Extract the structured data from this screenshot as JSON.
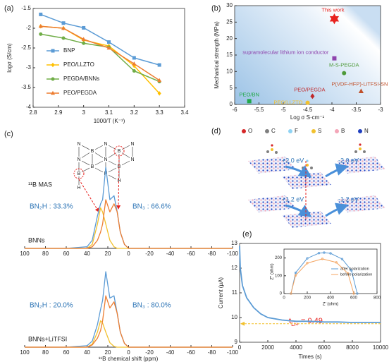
{
  "chart_data": [
    {
      "type": "line",
      "label": "(a)",
      "xlabel": "1000/T (K⁻¹)",
      "ylabel": "logσ (S/cm)",
      "xlim": [
        2.8,
        3.4
      ],
      "xticks": [
        2.8,
        2.9,
        3,
        3.1,
        3.2,
        3.3,
        3.4
      ],
      "ylim": [
        -4,
        -1.5
      ],
      "yticks": [
        -4,
        -3.5,
        -3,
        -2.5,
        -2,
        -1.5
      ],
      "x": [
        2.83,
        2.92,
        3.0,
        3.1,
        3.2,
        3.3
      ],
      "series": [
        {
          "name": "BNP",
          "color": "#5b9bd5",
          "marker": "square",
          "values": [
            -1.65,
            -1.87,
            -1.99,
            -2.35,
            -2.75,
            -2.93
          ]
        },
        {
          "name": "PEO/LLZTO",
          "color": "#ffc000",
          "marker": "diamond",
          "values": [
            -1.95,
            -2.0,
            -2.3,
            -2.45,
            -2.95,
            -3.65
          ]
        },
        {
          "name": "PEGDA/BNNs",
          "color": "#70ad47",
          "marker": "circle",
          "values": [
            -2.15,
            -2.25,
            -2.38,
            -2.48,
            -3.08,
            -3.35
          ]
        },
        {
          "name": "PEO/PEGDA",
          "color": "#ed7d31",
          "marker": "triangle",
          "values": [
            -1.95,
            -2.0,
            -2.28,
            -2.5,
            -2.9,
            -3.32
          ]
        }
      ]
    },
    {
      "type": "scatter",
      "label": "(b)",
      "xlabel": "Log σ S·cm⁻¹",
      "ylabel": "Mechanical strength (MPa)",
      "xlim": [
        -6,
        -3
      ],
      "xticks": [
        -6,
        -5.5,
        -5,
        -4.5,
        -4,
        -3.5,
        -3
      ],
      "ylim": [
        0,
        30
      ],
      "yticks": [
        0,
        5,
        10,
        15,
        20,
        25,
        30
      ],
      "series": [
        {
          "name": "This work",
          "color": "#e8231f",
          "marker": "star",
          "x": [
            -3.95
          ],
          "values": [
            26
          ]
        },
        {
          "name": "supramolecular lithium ion conductor",
          "color": "#8e44ad",
          "marker": "square",
          "x": [
            -3.95
          ],
          "values": [
            14
          ]
        },
        {
          "name": "M-S-PEGDA",
          "color": "#4e9a3a",
          "marker": "circle",
          "x": [
            -3.75
          ],
          "values": [
            9.5
          ]
        },
        {
          "name": "P(VDF-HFP)-LiTFSI-SN",
          "color": "#c0502a",
          "marker": "triangle",
          "x": [
            -3.4
          ],
          "values": [
            4
          ]
        },
        {
          "name": "PEO/PEGDA",
          "color": "#c0282a",
          "marker": "diamond",
          "x": [
            -4.4
          ],
          "values": [
            2.5
          ]
        },
        {
          "name": "PEO/BN",
          "color": "#22a84a",
          "marker": "square",
          "x": [
            -5.7
          ],
          "values": [
            1
          ]
        },
        {
          "name": "PEO/LLZTO",
          "color": "#f2c12e",
          "marker": "circle",
          "x": [
            -4.5
          ],
          "values": [
            0.5
          ]
        }
      ]
    },
    {
      "type": "spectrum",
      "label": "(c)",
      "header": "¹¹B MAS",
      "xlabel": "¹¹B chemical shift (ppm)",
      "xlim": [
        100,
        -100
      ],
      "xticks": [
        100,
        80,
        60,
        40,
        20,
        0,
        -20,
        -40,
        -60,
        -80,
        -100
      ],
      "ylim": [
        0,
        1
      ],
      "structure": [
        "N",
        "B",
        "N",
        "B",
        "N",
        "N",
        "B",
        "N",
        "B",
        "B",
        "H",
        "H",
        "N",
        "H"
      ],
      "spectra": [
        {
          "name": "BNNs",
          "annotations": [
            "BN₂H : 33.3%",
            "BN₃ : 66.6%"
          ],
          "x": [
            100,
            60,
            40,
            35,
            30,
            27,
            25,
            22,
            18,
            14,
            11,
            8,
            4,
            0,
            -100
          ],
          "series": [
            {
              "color": "#5b9bd5",
              "values": [
                0,
                0,
                0.02,
                0.1,
                0.4,
                0.55,
                0.6,
                1.0,
                0.6,
                0.65,
                0.45,
                0.2,
                0.05,
                0,
                0
              ]
            },
            {
              "color": "#f2c12e",
              "values": [
                0,
                0,
                0,
                0.05,
                0.3,
                0.5,
                0.45,
                0.3,
                0.1,
                0.02,
                0,
                0,
                0,
                0,
                0
              ]
            },
            {
              "color": "#ed7d31",
              "values": [
                0,
                0,
                0,
                0.02,
                0.1,
                0.2,
                0.3,
                0.6,
                0.45,
                0.55,
                0.45,
                0.2,
                0.05,
                0,
                0
              ]
            }
          ]
        },
        {
          "name": "BNNs+LiTFSI",
          "annotations": [
            "BN₂H : 20.0%",
            "BN₃ : 80.0%"
          ],
          "x": [
            100,
            60,
            40,
            35,
            30,
            27,
            25,
            22,
            18,
            14,
            11,
            8,
            4,
            0,
            -100
          ],
          "series": [
            {
              "color": "#5b9bd5",
              "values": [
                0,
                0,
                0.02,
                0.08,
                0.3,
                0.5,
                0.62,
                1.0,
                0.65,
                0.68,
                0.45,
                0.2,
                0.05,
                0,
                0
              ]
            },
            {
              "color": "#f2c12e",
              "values": [
                0,
                0,
                0,
                0.04,
                0.2,
                0.35,
                0.32,
                0.2,
                0.06,
                0.01,
                0,
                0,
                0,
                0,
                0
              ]
            },
            {
              "color": "#ed7d31",
              "values": [
                0,
                0,
                0,
                0.03,
                0.12,
                0.22,
                0.35,
                0.68,
                0.52,
                0.6,
                0.45,
                0.2,
                0.05,
                0,
                0
              ]
            }
          ]
        }
      ]
    },
    {
      "type": "line",
      "label": "(e)",
      "xlabel": "Times (s)",
      "ylabel": "Current (μA)",
      "xlim": [
        0,
        10000
      ],
      "xticks": [
        0,
        2000,
        4000,
        6000,
        8000,
        10000
      ],
      "ylim": [
        9,
        13
      ],
      "yticks": [
        9,
        10,
        11,
        12,
        13
      ],
      "x": [
        0,
        50,
        200,
        500,
        1000,
        1500,
        2000,
        3000,
        4000,
        5000,
        6000,
        7000,
        8000,
        9000,
        10000
      ],
      "series": [
        {
          "color": "#5b9bd5",
          "values": [
            12.9,
            12.0,
            11.3,
            10.8,
            10.4,
            10.15,
            10.0,
            9.9,
            9.85,
            9.85,
            9.82,
            9.82,
            9.8,
            9.8,
            9.8
          ]
        }
      ],
      "reference_line": 9.75,
      "reference_color": "#f2c12e",
      "annotation": {
        "main": "t",
        "sub": "Li+",
        "rest": " = 0.49",
        "color": "#e8231f"
      },
      "inset": {
        "type": "line",
        "xlabel": "Z' (ohm)",
        "ylabel": "Z'' (ohm)",
        "xlim": [
          0,
          800
        ],
        "xticks": [
          0,
          200,
          400,
          600,
          800
        ],
        "ylim": [
          0,
          250
        ],
        "yticks": [
          0,
          100,
          200
        ],
        "series": [
          {
            "name": "after polarization",
            "color": "#5b9bd5",
            "x": [
              60,
              100,
              200,
              300,
              345,
              400,
              500,
              580,
              630
            ],
            "values": [
              0,
              117,
              198,
              227,
              230,
              226,
              194,
              130,
              0
            ]
          },
          {
            "name": "before polarization",
            "color": "#f4a460",
            "x": [
              60,
              100,
              200,
              330,
              450,
              550,
              600
            ],
            "values": [
              0,
              102,
              171,
              195,
              175,
              113,
              0
            ]
          }
        ]
      }
    }
  ],
  "diagram": {
    "label": "(d)",
    "legend": [
      {
        "name": "O",
        "color": "#d62728"
      },
      {
        "name": "C",
        "color": "#7f7f7f"
      },
      {
        "name": "F",
        "color": "#8fd3f4"
      },
      {
        "name": "S",
        "color": "#f2c12e"
      },
      {
        "name": "B",
        "color": "#f4a6b8"
      },
      {
        "name": "N",
        "color": "#1f3fbf"
      }
    ],
    "energies": [
      "+2.0 eV",
      "-2.0 eV",
      "+1.2 eV",
      "-1.2 eV"
    ]
  }
}
